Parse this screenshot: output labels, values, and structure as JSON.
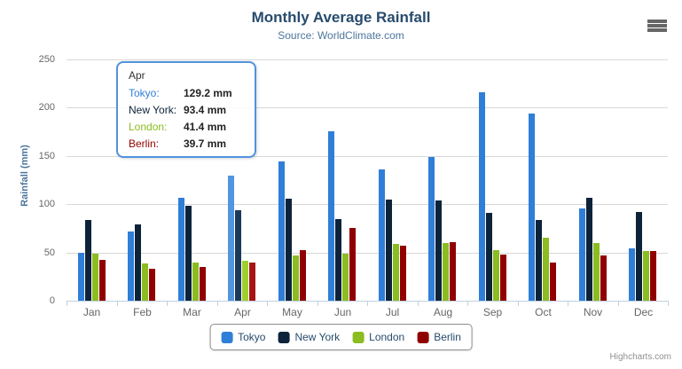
{
  "header": {
    "title": "Monthly Average Rainfall",
    "subtitle": "Source: WorldClimate.com"
  },
  "chart_data": {
    "type": "bar",
    "title": "Monthly Average Rainfall",
    "subtitle": "Source: WorldClimate.com",
    "xlabel": "",
    "ylabel": "Rainfall (mm)",
    "ylim": [
      0,
      250
    ],
    "yticks": [
      0,
      50,
      100,
      150,
      200,
      250
    ],
    "grid": true,
    "legend_position": "bottom",
    "categories": [
      "Jan",
      "Feb",
      "Mar",
      "Apr",
      "May",
      "Jun",
      "Jul",
      "Aug",
      "Sep",
      "Oct",
      "Nov",
      "Dec"
    ],
    "series": [
      {
        "name": "Tokyo",
        "color": "#2f7ed8",
        "hover_color": "#5295e0",
        "values": [
          49.9,
          71.5,
          106.4,
          129.2,
          144.0,
          176.0,
          135.6,
          148.5,
          216.4,
          194.1,
          95.6,
          54.4
        ]
      },
      {
        "name": "New York",
        "color": "#0d233a",
        "hover_color": "#1c3a57",
        "values": [
          83.6,
          78.8,
          98.5,
          93.4,
          106.0,
          84.5,
          105.0,
          104.3,
          91.2,
          83.5,
          106.6,
          92.3
        ]
      },
      {
        "name": "London",
        "color": "#8bbc21",
        "hover_color": "#9ecf2d",
        "values": [
          48.9,
          38.8,
          39.3,
          41.4,
          47.0,
          48.3,
          59.0,
          59.6,
          52.4,
          65.2,
          59.3,
          51.2
        ]
      },
      {
        "name": "Berlin",
        "color": "#910000",
        "hover_color": "#a51414",
        "values": [
          42.4,
          33.2,
          34.5,
          39.7,
          52.6,
          75.5,
          57.4,
          60.4,
          47.6,
          39.1,
          46.8,
          51.1
        ]
      }
    ],
    "hovered_category": "Apr",
    "hovered_index": 3
  },
  "tooltip": {
    "header": "Apr",
    "border_color": "#5193dd",
    "rows": [
      {
        "label": "Tokyo:",
        "value": "129.2 mm",
        "color": "#2f7ed8"
      },
      {
        "label": "New York:",
        "value": "93.4 mm",
        "color": "#0d233a"
      },
      {
        "label": "London:",
        "value": "41.4 mm",
        "color": "#8bbc21"
      },
      {
        "label": "Berlin:",
        "value": "39.7 mm",
        "color": "#910000"
      }
    ]
  },
  "legend": {
    "items": [
      {
        "label": "Tokyo",
        "color": "#2f7ed8"
      },
      {
        "label": "New York",
        "color": "#0d233a"
      },
      {
        "label": "London",
        "color": "#8bbc21"
      },
      {
        "label": "Berlin",
        "color": "#910000"
      }
    ]
  },
  "credits": "Highcharts.com",
  "colors": {
    "title": "#274b6d",
    "subtitle": "#4d759e",
    "axis_line": "#c0d0e0",
    "gridline": "#d8d8d8",
    "axis_label": "#666666"
  }
}
